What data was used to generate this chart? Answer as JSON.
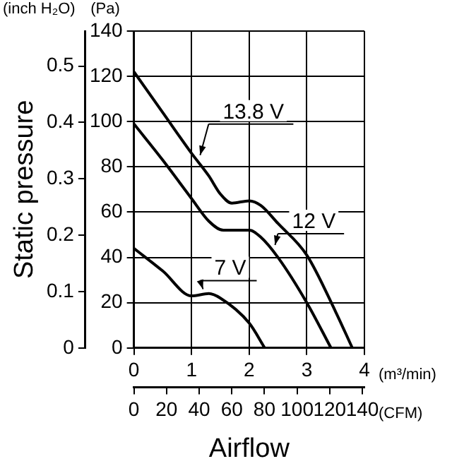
{
  "chart_data": {
    "type": "line",
    "xlabel": "(m³/min)",
    "ylabel": "(Pa)",
    "y2label": "(inch H₂O)",
    "x2label": "(CFM)",
    "annotations": [
      "Static pressure",
      "Airflow"
    ],
    "xlim": [
      0,
      4
    ],
    "xticks": [
      0,
      1,
      2,
      3,
      4
    ],
    "ylim": [
      0,
      140
    ],
    "yticks": [
      0,
      20,
      40,
      60,
      80,
      100,
      120,
      140
    ],
    "y2lim": [
      0,
      0.562
    ],
    "y2ticks": [
      0,
      0.1,
      0.2,
      0.3,
      0.4,
      0.5
    ],
    "x2lim": [
      0,
      141.3
    ],
    "x2ticks": [
      0,
      20,
      40,
      60,
      80,
      100,
      120,
      140
    ],
    "grid": true,
    "legend": false,
    "marker": "none",
    "line_style": "solid",
    "series": [
      {
        "name": "13.8 V",
        "color": "#000000",
        "x": [
          0,
          0.5,
          1,
          1.3,
          1.5,
          1.7,
          2,
          2.2,
          2.5,
          3,
          3.5,
          3.79
        ],
        "values": [
          122,
          104,
          86,
          76,
          68,
          64,
          65,
          63,
          55,
          41,
          16,
          0
        ]
      },
      {
        "name": "12 V",
        "color": "#000000",
        "x": [
          0,
          0.5,
          1,
          1.3,
          1.55,
          2,
          2.2,
          2.5,
          3,
          3.42
        ],
        "values": [
          99,
          83,
          66,
          56,
          52,
          52,
          49,
          40,
          20,
          0
        ]
      },
      {
        "name": "7 V",
        "color": "#000000",
        "x": [
          0,
          0.5,
          1,
          1.3,
          1.5,
          2,
          2.27
        ],
        "values": [
          44,
          34,
          23,
          24,
          22,
          11,
          0
        ]
      }
    ]
  }
}
